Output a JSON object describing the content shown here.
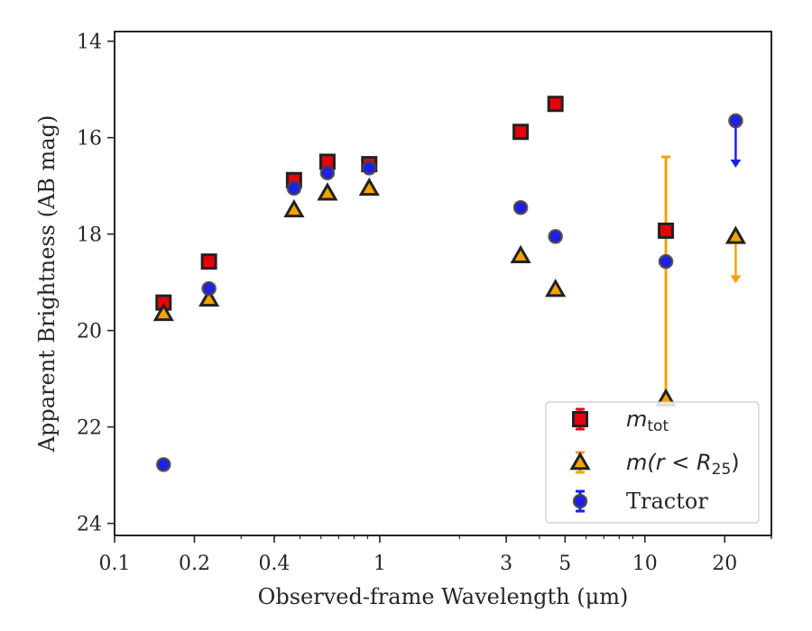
{
  "chart_data": {
    "type": "scatter",
    "x_scale": "log",
    "y_inverted": true,
    "xlabel": "Observed-frame Wavelength (μm)",
    "ylabel": "Apparent Brightness (AB mag)",
    "xlim": [
      0.1,
      30
    ],
    "ylim": [
      24.25,
      13.8
    ],
    "x_ticks": [
      {
        "value": 0.1,
        "label": "0.1"
      },
      {
        "value": 0.2,
        "label": "0.2"
      },
      {
        "value": 0.4,
        "label": "0.4"
      },
      {
        "value": 1,
        "label": "1"
      },
      {
        "value": 3,
        "label": "3"
      },
      {
        "value": 5,
        "label": "5"
      },
      {
        "value": 10,
        "label": "10"
      },
      {
        "value": 20,
        "label": "20"
      }
    ],
    "y_ticks": [
      {
        "value": 14,
        "label": "14"
      },
      {
        "value": 16,
        "label": "16"
      },
      {
        "value": 18,
        "label": "18"
      },
      {
        "value": 20,
        "label": "20"
      },
      {
        "value": 22,
        "label": "22"
      },
      {
        "value": 24,
        "label": "24"
      }
    ],
    "legend_position": "lower-right",
    "series": [
      {
        "name": "m_tot",
        "legend_label": "m",
        "legend_subscript": "tot",
        "marker": "square",
        "color": "#e8000b",
        "edge_color": "#222222",
        "points": [
          {
            "x": 0.153,
            "y": 19.42
          },
          {
            "x": 0.227,
            "y": 18.57
          },
          {
            "x": 0.475,
            "y": 16.88
          },
          {
            "x": 0.635,
            "y": 16.5
          },
          {
            "x": 0.913,
            "y": 16.55
          },
          {
            "x": 3.4,
            "y": 15.88
          },
          {
            "x": 4.6,
            "y": 15.3
          },
          {
            "x": 12.0,
            "y": 17.93
          }
        ]
      },
      {
        "name": "m(r < R25)",
        "legend_label": "m(r < R",
        "legend_subscript": "25",
        "legend_suffix": ")",
        "marker": "triangle",
        "color": "#f5a300",
        "edge_color": "#222222",
        "points": [
          {
            "x": 0.153,
            "y": 19.65
          },
          {
            "x": 0.227,
            "y": 19.35
          },
          {
            "x": 0.475,
            "y": 17.5
          },
          {
            "x": 0.635,
            "y": 17.15
          },
          {
            "x": 0.913,
            "y": 17.05
          },
          {
            "x": 3.4,
            "y": 18.45
          },
          {
            "x": 4.6,
            "y": 19.15
          },
          {
            "x": 12.0,
            "y": 21.42,
            "err_low": 16.4,
            "err_high": 21.42
          },
          {
            "x": 22.0,
            "y": 18.05,
            "upper_limit": true
          }
        ]
      },
      {
        "name": "Tractor",
        "legend_label": "Tractor",
        "marker": "circle",
        "color": "#1f1fe8",
        "edge_color": "#444444",
        "points": [
          {
            "x": 0.153,
            "y": 22.78
          },
          {
            "x": 0.227,
            "y": 19.13
          },
          {
            "x": 0.475,
            "y": 17.05
          },
          {
            "x": 0.635,
            "y": 16.73
          },
          {
            "x": 0.913,
            "y": 16.63
          },
          {
            "x": 3.4,
            "y": 17.45
          },
          {
            "x": 4.6,
            "y": 18.05
          },
          {
            "x": 12.0,
            "y": 18.57
          },
          {
            "x": 22.0,
            "y": 15.65,
            "upper_limit": true
          }
        ]
      }
    ]
  }
}
